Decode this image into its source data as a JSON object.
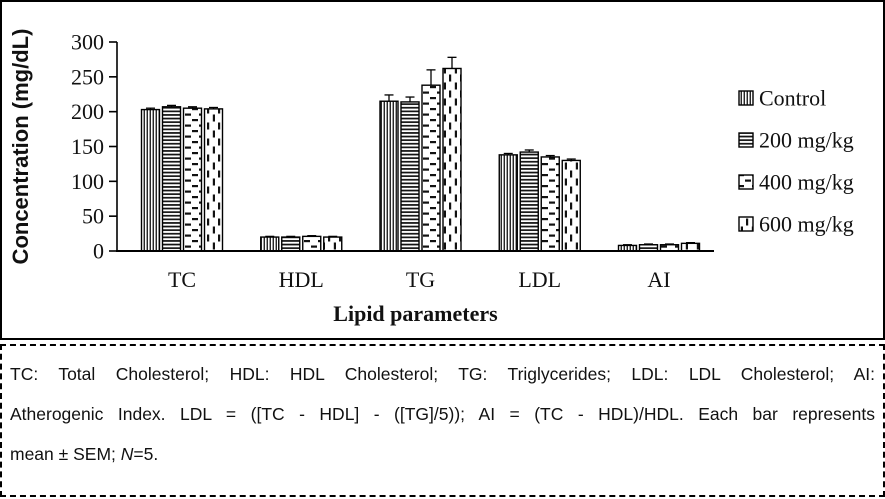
{
  "figure": {
    "background": "#ffffff",
    "border_color": "#000000"
  },
  "chart_data": {
    "type": "bar",
    "title": "",
    "xlabel": "Lipid parameters",
    "ylabel": "Concentration (mg/dL)",
    "ylim": [
      0,
      300
    ],
    "yticks": [
      0,
      50,
      100,
      150,
      200,
      250,
      300
    ],
    "grid": false,
    "legend_position": "right",
    "bar_color": "#ffffff",
    "bar_stroke": "#000000",
    "categories": [
      "TC",
      "HDL",
      "TG",
      "LDL",
      "AI"
    ],
    "series": [
      {
        "name": "Control",
        "pattern": "vertical-lines",
        "values": [
          203,
          20,
          215,
          138,
          8
        ],
        "sem": [
          2,
          1,
          9,
          2,
          1
        ]
      },
      {
        "name": "200 mg/kg",
        "pattern": "horizontal-lines",
        "values": [
          207,
          20,
          214,
          142,
          9
        ],
        "sem": [
          2,
          1,
          7,
          3,
          1
        ]
      },
      {
        "name": "400 mg/kg",
        "pattern": "horizontal-dashes",
        "values": [
          205,
          21,
          238,
          135,
          9
        ],
        "sem": [
          2,
          1,
          22,
          2,
          1
        ]
      },
      {
        "name": "600 mg/kg",
        "pattern": "vertical-dashes",
        "values": [
          204,
          20,
          262,
          130,
          11
        ],
        "sem": [
          2,
          1,
          16,
          2,
          1
        ]
      }
    ]
  },
  "footnote": {
    "line1": "TC: Total Cholesterol; HDL: HDL Cholesterol; TG: Triglycerides; LDL: LDL Cholesterol; AI:",
    "line2": "Atherogenic Index. LDL = ([TC - HDL] - ([TG]/5)); AI = (TC - HDL)/HDL. Each bar represents",
    "line3_prefix": "mean ± SEM; ",
    "line3_n": "N",
    "line3_suffix": "=5."
  }
}
